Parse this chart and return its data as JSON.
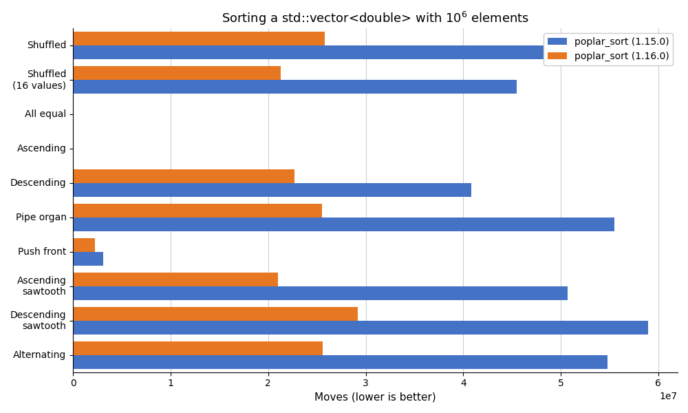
{
  "title": "Sorting a std::vector<double> with 10$^6$ elements",
  "xlabel": "Moves (lower is better)",
  "categories": [
    "Shuffled",
    "Shuffled\n(16 values)",
    "All equal",
    "Ascending",
    "Descending",
    "Pipe organ",
    "Push front",
    "Ascending\nsawtooth",
    "Descending\nsawtooth",
    "Alternating"
  ],
  "series": [
    {
      "label": "poplar_sort (1.15.0)",
      "color": "#4472C4",
      "values": [
        57200000.0,
        45500000.0,
        0,
        0,
        40800000.0,
        55500000.0,
        3100000.0,
        50700000.0,
        59000000.0,
        54800000.0
      ]
    },
    {
      "label": "poplar_sort (1.16.0)",
      "color": "#E87722",
      "values": [
        25800000.0,
        21300000.0,
        0,
        0,
        22700000.0,
        25500000.0,
        2200000.0,
        21000000.0,
        29200000.0,
        25600000.0
      ]
    }
  ],
  "xlim": [
    0,
    62000000.0
  ],
  "xticks": [
    0,
    10000000.0,
    20000000.0,
    30000000.0,
    40000000.0,
    50000000.0,
    60000000.0
  ],
  "figsize": [
    10,
    6
  ],
  "dpi": 100,
  "bar_height": 0.4,
  "legend_loc": "upper right",
  "background_color": "#ffffff"
}
